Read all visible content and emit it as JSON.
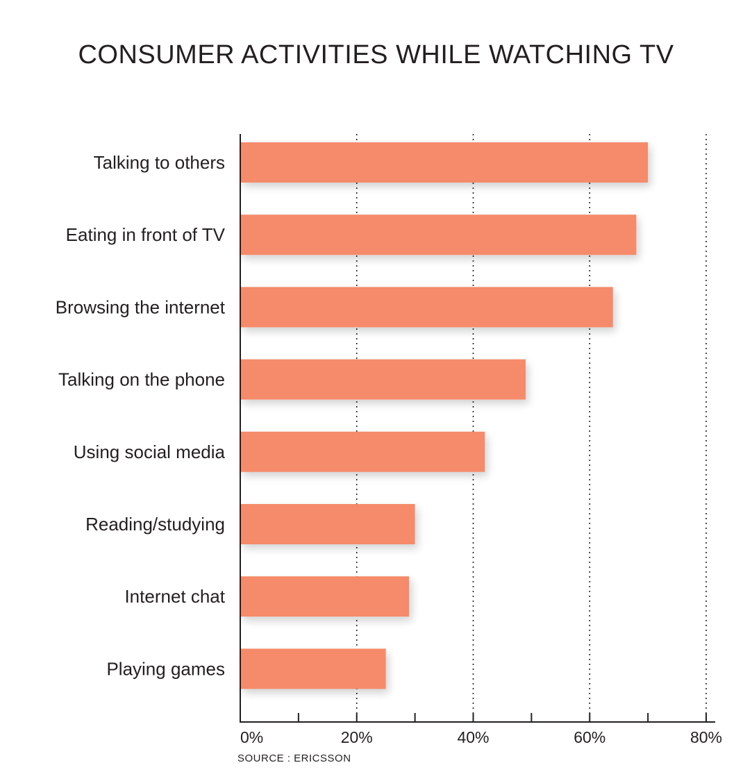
{
  "chart_data": {
    "type": "bar",
    "orientation": "horizontal",
    "title": "CONSUMER ACTIVITIES WHILE WATCHING TV",
    "source": "SOURCE : ERICSSON",
    "categories": [
      "Talking to others",
      "Eating in front of TV",
      "Browsing the internet",
      "Talking on the phone",
      "Using social media",
      "Reading/studying",
      "Internet chat",
      "Playing games"
    ],
    "values": [
      70,
      68,
      64,
      49,
      42,
      30,
      29,
      25
    ],
    "unit": "%",
    "xlim": [
      0,
      80
    ],
    "xticks": [
      0,
      20,
      40,
      60,
      80
    ],
    "xtick_labels": [
      "0%",
      "20%",
      "40%",
      "60%",
      "80%"
    ],
    "minor_ticks": [
      10,
      30,
      50,
      70
    ],
    "grid": "vertical dotted at 20% intervals",
    "bar_color": "#f58b6b"
  }
}
